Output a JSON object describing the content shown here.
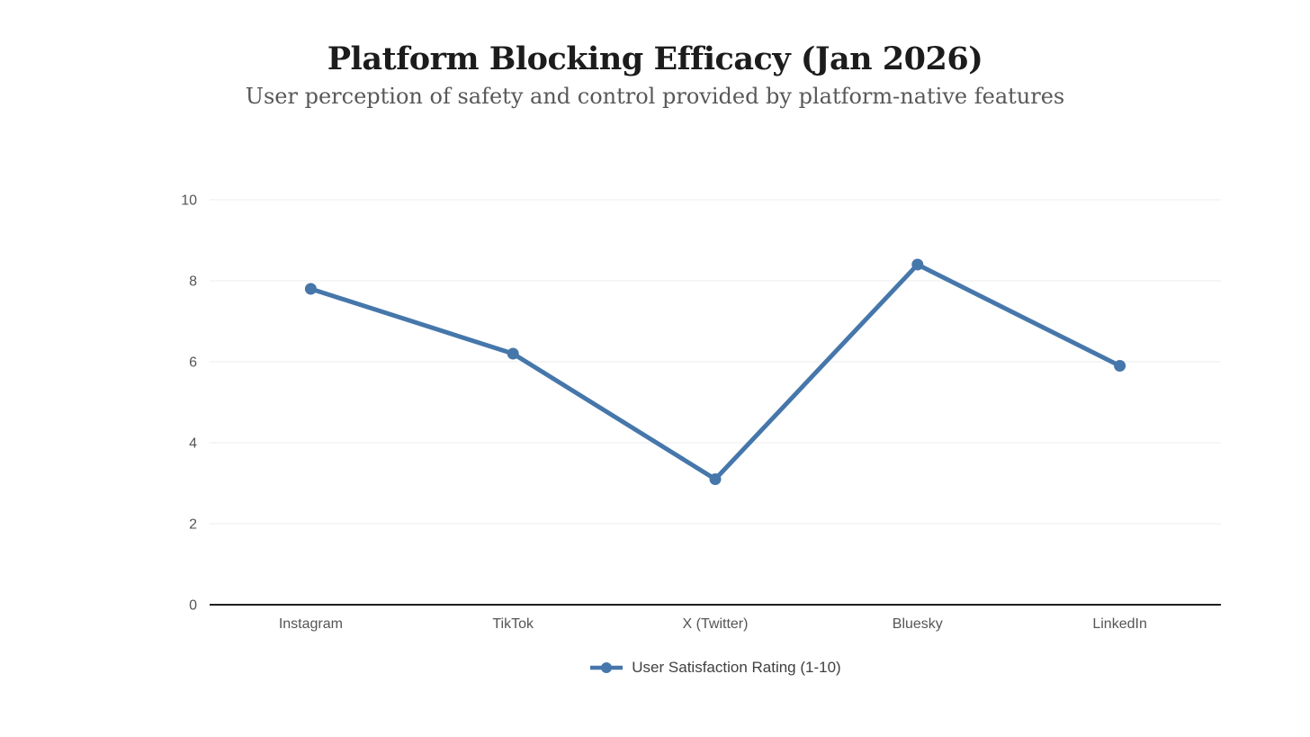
{
  "header": {
    "title": "Platform Blocking Efficacy (Jan 2026)",
    "subtitle": "User perception of safety and control provided by platform-native features"
  },
  "legend": {
    "label": "User Satisfaction Rating (1-10)"
  },
  "colors": {
    "series": "#4677ab",
    "grid": "#ececec",
    "axis_baseline": "#1f1f1f",
    "tick_text": "#555555",
    "legend_text": "#3f3f3f"
  },
  "chart_data": {
    "type": "line",
    "title": "Platform Blocking Efficacy (Jan 2026)",
    "subtitle": "User perception of safety and control provided by platform-native features",
    "categories": [
      "Instagram",
      "TikTok",
      "X (Twitter)",
      "Bluesky",
      "LinkedIn"
    ],
    "series": [
      {
        "name": "User Satisfaction Rating (1-10)",
        "values": [
          7.8,
          6.2,
          3.1,
          8.4,
          5.9
        ],
        "color": "#4677ab",
        "marker": "circle"
      }
    ],
    "xlabel": "",
    "ylabel": "",
    "ylim": [
      0,
      10
    ],
    "yticks": [
      0,
      2,
      4,
      6,
      8,
      10
    ],
    "grid": true,
    "legend_position": "bottom"
  }
}
